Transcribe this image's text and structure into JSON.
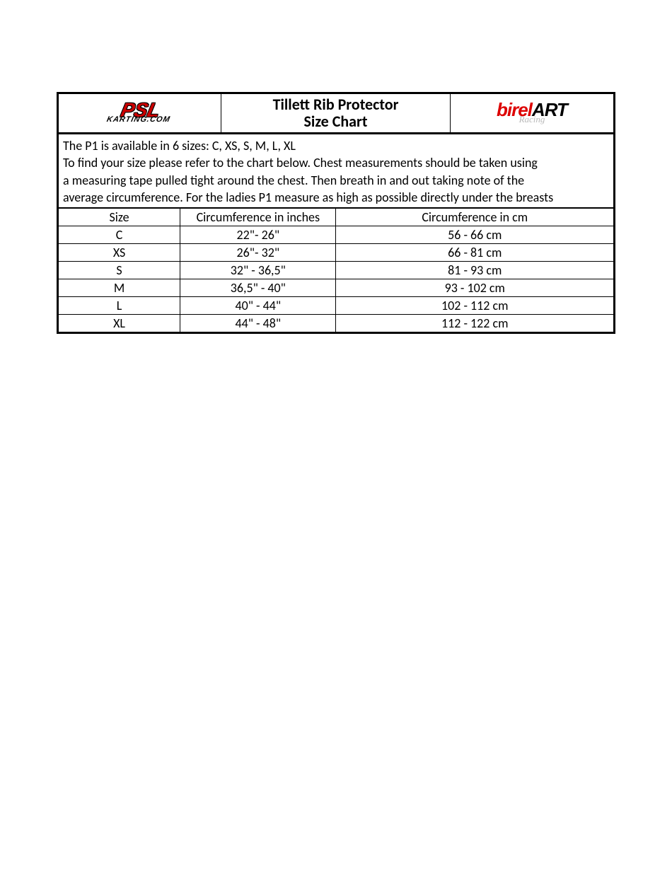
{
  "header": {
    "logo_left_main": "PSL",
    "logo_left_sub": "KARTING.COM",
    "title_line1": "Tillett Rib Protector",
    "title_line2": "Size Chart",
    "logo_right_birel": "birel",
    "logo_right_art": "ART",
    "logo_right_sub": "Racing"
  },
  "description": {
    "line1": "The P1 is available in 6 sizes: C, XS, S, M, L, XL",
    "line2": "To find your size please refer to the chart below. Chest measurements should be taken using",
    "line3": "a measuring tape pulled tight around the chest. Then breath in and out taking note of the",
    "line4": "average circumference. For the ladies P1 measure as high as possible directly under the breasts"
  },
  "table": {
    "columns": [
      "Size",
      "Circumference in inches",
      "Circumference in cm"
    ],
    "rows": [
      [
        "C",
        "22\"- 26\"",
        "56 - 66 cm"
      ],
      [
        "XS",
        "26\"- 32\"",
        "66 - 81 cm"
      ],
      [
        "S",
        "32\" - 36,5\"",
        "81 - 93 cm"
      ],
      [
        "M",
        "36,5\" - 40\"",
        "93 - 102 cm"
      ],
      [
        "L",
        "40\" - 44\"",
        "102 - 112 cm"
      ],
      [
        "XL",
        "44\" - 48\"",
        "112 - 122 cm"
      ]
    ]
  },
  "colors": {
    "border": "#000000",
    "text": "#000000",
    "logo_red": "#cc0000",
    "logo_gray": "#bbbbbb",
    "background": "#ffffff"
  },
  "typography": {
    "title_fontsize": 22,
    "body_fontsize": 18,
    "font_family": "Calibri"
  }
}
